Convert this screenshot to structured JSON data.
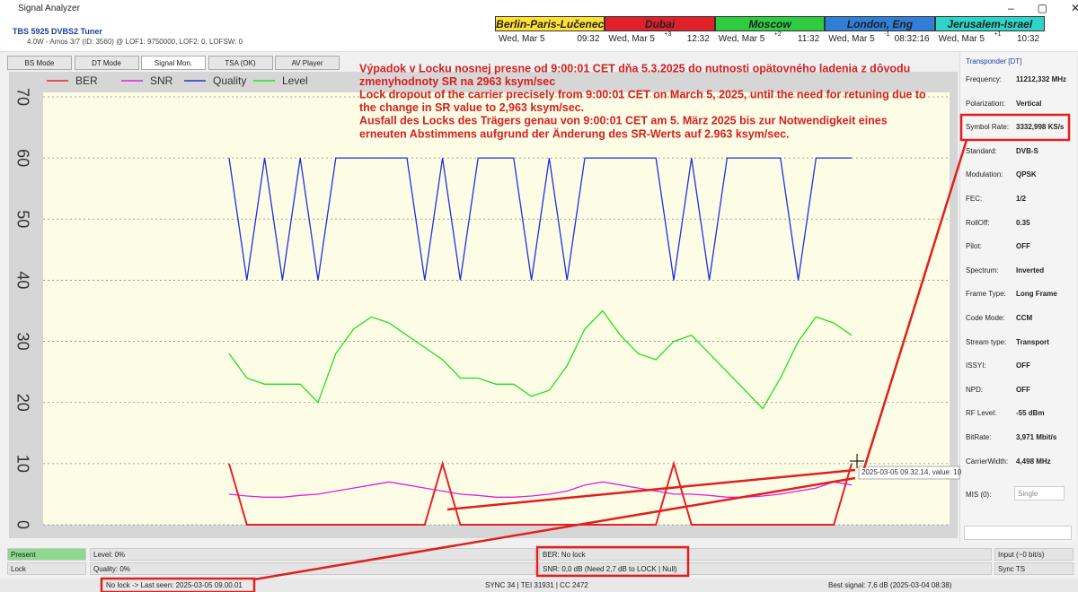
{
  "window": {
    "title": "Signal Analyzer"
  },
  "tuner": {
    "name": "TBS 5925 DVBS2 Tuner",
    "info": "4.0W - Amos 3/7 (ID: 3560) @ LOF1: 9750000, LOF2: 0, LOFSW: 0"
  },
  "clocks": [
    {
      "city": "Berlin-Paris-Lučenec",
      "color": "#ffe033",
      "date": "Wed, Mar 5",
      "time": "09:32"
    },
    {
      "city": "Dubai",
      "color": "#e0202a",
      "date": "Wed, Mar 5",
      "offset": "+3",
      "time": "12:32"
    },
    {
      "city": "Moscow",
      "color": "#2ecc40",
      "date": "Wed, Mar 5",
      "offset": "+2",
      "time": "11:32"
    },
    {
      "city": "London, Eng",
      "color": "#2f7fd8",
      "date": "Wed, Mar 5",
      "offset": "-1",
      "time": "08:32:16"
    },
    {
      "city": "Jerusalem-Israel",
      "color": "#2dd4c8",
      "date": "Wed, Mar 5",
      "offset": "+1",
      "time": "10:32"
    }
  ],
  "tabs": [
    "BS Mode",
    "DT Mode",
    "Signal Mon.",
    "TSA (OK)",
    "AV Player"
  ],
  "chart_data": {
    "type": "line",
    "annotations": [
      "Výpadok v Locku nosnej presne od 9:00:01 CET dňa 5.3.2025 do nutnosti opätovného ladenia z dôvodu",
      "zmenyhodnoty SR na 2963 ksym/sec",
      "Lock dropout of the carrier precisely from 9:00:01 CET on March 5, 2025, until the need for retuning due to",
      "the change in SR value to 2,963 ksym/sec.",
      "Ausfall des Locks des Trägers genau von 9:00:01 CET am 5. März 2025 bis zur Notwendigkeit eines",
      "erneuten Abstimmens aufgrund der Änderung des SR-Werts auf 2.963 ksym/sec."
    ],
    "tooltip": "2025-03-05 09.32.14, value: 10",
    "ylim": [
      0,
      70
    ],
    "yticks": [
      0,
      10,
      20,
      30,
      40,
      50,
      60,
      70
    ],
    "grid": true,
    "series": [
      {
        "name": "BER",
        "color": "#e8202a",
        "values": [
          10,
          0,
          0,
          0,
          0,
          0,
          0,
          0,
          0,
          0,
          0,
          0,
          10,
          0,
          0,
          0,
          0,
          0,
          0,
          0,
          0,
          0,
          0,
          0,
          0,
          10,
          0,
          0,
          0,
          0,
          0,
          0,
          0,
          0,
          0,
          10
        ]
      },
      {
        "name": "SNR",
        "color": "#e020e0",
        "values": [
          5,
          4.7,
          4.5,
          4.5,
          4.8,
          5,
          5.5,
          6,
          6.5,
          7,
          6.5,
          6,
          5.5,
          5,
          4.8,
          4.5,
          4.5,
          4.7,
          5,
          5.5,
          6.5,
          7,
          6.5,
          6,
          5.5,
          5,
          5,
          4.8,
          4.5,
          4.5,
          4.7,
          5,
          5.5,
          6,
          7,
          6.5
        ]
      },
      {
        "name": "Quality",
        "color": "#2030e0",
        "values": [
          60,
          40,
          60,
          40,
          60,
          40,
          60,
          60,
          60,
          60,
          60,
          40,
          60,
          40,
          60,
          60,
          60,
          40,
          60,
          40,
          60,
          60,
          60,
          60,
          60,
          40,
          60,
          40,
          60,
          60,
          60,
          60,
          40,
          60,
          60,
          60
        ]
      },
      {
        "name": "Level",
        "color": "#20e020",
        "values": [
          28,
          24,
          23,
          23,
          23,
          20,
          28,
          32,
          34,
          33,
          31,
          29,
          27,
          24,
          24,
          23,
          23,
          21,
          22,
          26,
          32,
          35,
          31,
          28,
          27,
          30,
          31,
          28,
          25,
          22,
          19,
          24,
          30,
          34,
          33,
          31
        ]
      }
    ]
  },
  "transponder": {
    "title": "Transponder [DT]",
    "fields": [
      {
        "label": "Frequency:",
        "value": "11212,332 MHz"
      },
      {
        "label": "Polarization:",
        "value": "Vertical"
      },
      {
        "label": "Symbol Rate:",
        "value": "3332,998 KS/s"
      },
      {
        "label": "Standard:",
        "value": "DVB-S"
      },
      {
        "label": "Modulation:",
        "value": "QPSK"
      },
      {
        "label": "FEC:",
        "value": "1/2"
      },
      {
        "label": "RollOff:",
        "value": "0.35"
      },
      {
        "label": "Pilot:",
        "value": "OFF"
      },
      {
        "label": "Spectrum:",
        "value": "Inverted"
      },
      {
        "label": "Frame Type:",
        "value": "Long Frame"
      },
      {
        "label": "Code Mode:",
        "value": "CCM"
      },
      {
        "label": "Stream type:",
        "value": "Transport"
      },
      {
        "label": "ISSYI:",
        "value": "OFF"
      },
      {
        "label": "NPD:",
        "value": "OFF"
      },
      {
        "label": "RF Level:",
        "value": "-55 dBm"
      },
      {
        "label": "BitRate:",
        "value": "3,971 Mbit/s"
      },
      {
        "label": "CarrierWidth:",
        "value": "4,498 MHz"
      }
    ],
    "mis": {
      "label": "MIS (0):",
      "value": "Single"
    }
  },
  "meters": [
    [
      "Present",
      "Level: 0%",
      "BER: No lock",
      "Input (~0 bit/s)"
    ],
    [
      "Lock",
      "Quality: 0%",
      "SNR: 0,0 dB (Need 2,7 dB to LOCK | Null)",
      "Sync TS"
    ]
  ],
  "status": [
    "No lock -> Last seen: 2025-03-05 09.00.01",
    "SYNC 34 | TEI 31931 | CC 2472",
    "Best signal: 7,6 dB (2025-03-04 08:38)"
  ]
}
